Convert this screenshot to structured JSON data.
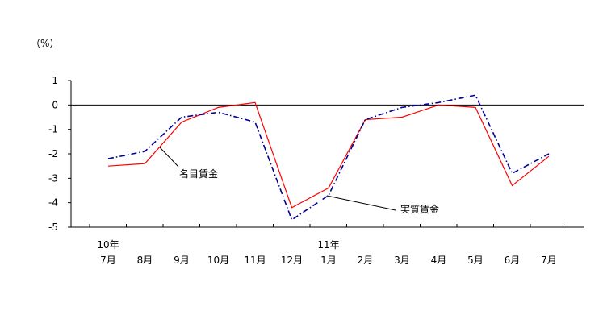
{
  "chart_data": {
    "type": "line",
    "unit_label": "（%）",
    "ylim": [
      -5,
      1
    ],
    "yticks": [
      1,
      0,
      -1,
      -2,
      -3,
      -4,
      -5
    ],
    "year_labels": [
      {
        "category_index": 0,
        "text": "10年"
      },
      {
        "category_index": 6,
        "text": "11年"
      }
    ],
    "categories": [
      "7月",
      "8月",
      "9月",
      "10月",
      "11月",
      "12月",
      "1月",
      "2月",
      "3月",
      "4月",
      "5月",
      "6月",
      "7月"
    ],
    "series": [
      {
        "name": "名目賃金",
        "color": "#ff0000",
        "style": "solid",
        "values": [
          -2.5,
          -2.4,
          -0.7,
          -0.1,
          0.1,
          -4.2,
          -3.4,
          -0.6,
          -0.5,
          0.0,
          -0.1,
          -3.3,
          -2.1
        ]
      },
      {
        "name": "実質賃金",
        "color": "#000099",
        "style": "dashdot",
        "values": [
          -2.2,
          -1.9,
          -0.5,
          -0.3,
          -0.7,
          -4.7,
          -3.7,
          -0.6,
          -0.1,
          0.1,
          0.4,
          -2.8,
          -2.0
        ]
      }
    ],
    "annotations": [
      {
        "series_index": 0,
        "text": "名目賃金"
      },
      {
        "series_index": 1,
        "text": "実質賃金"
      }
    ],
    "grid": false,
    "zero_line": true
  }
}
